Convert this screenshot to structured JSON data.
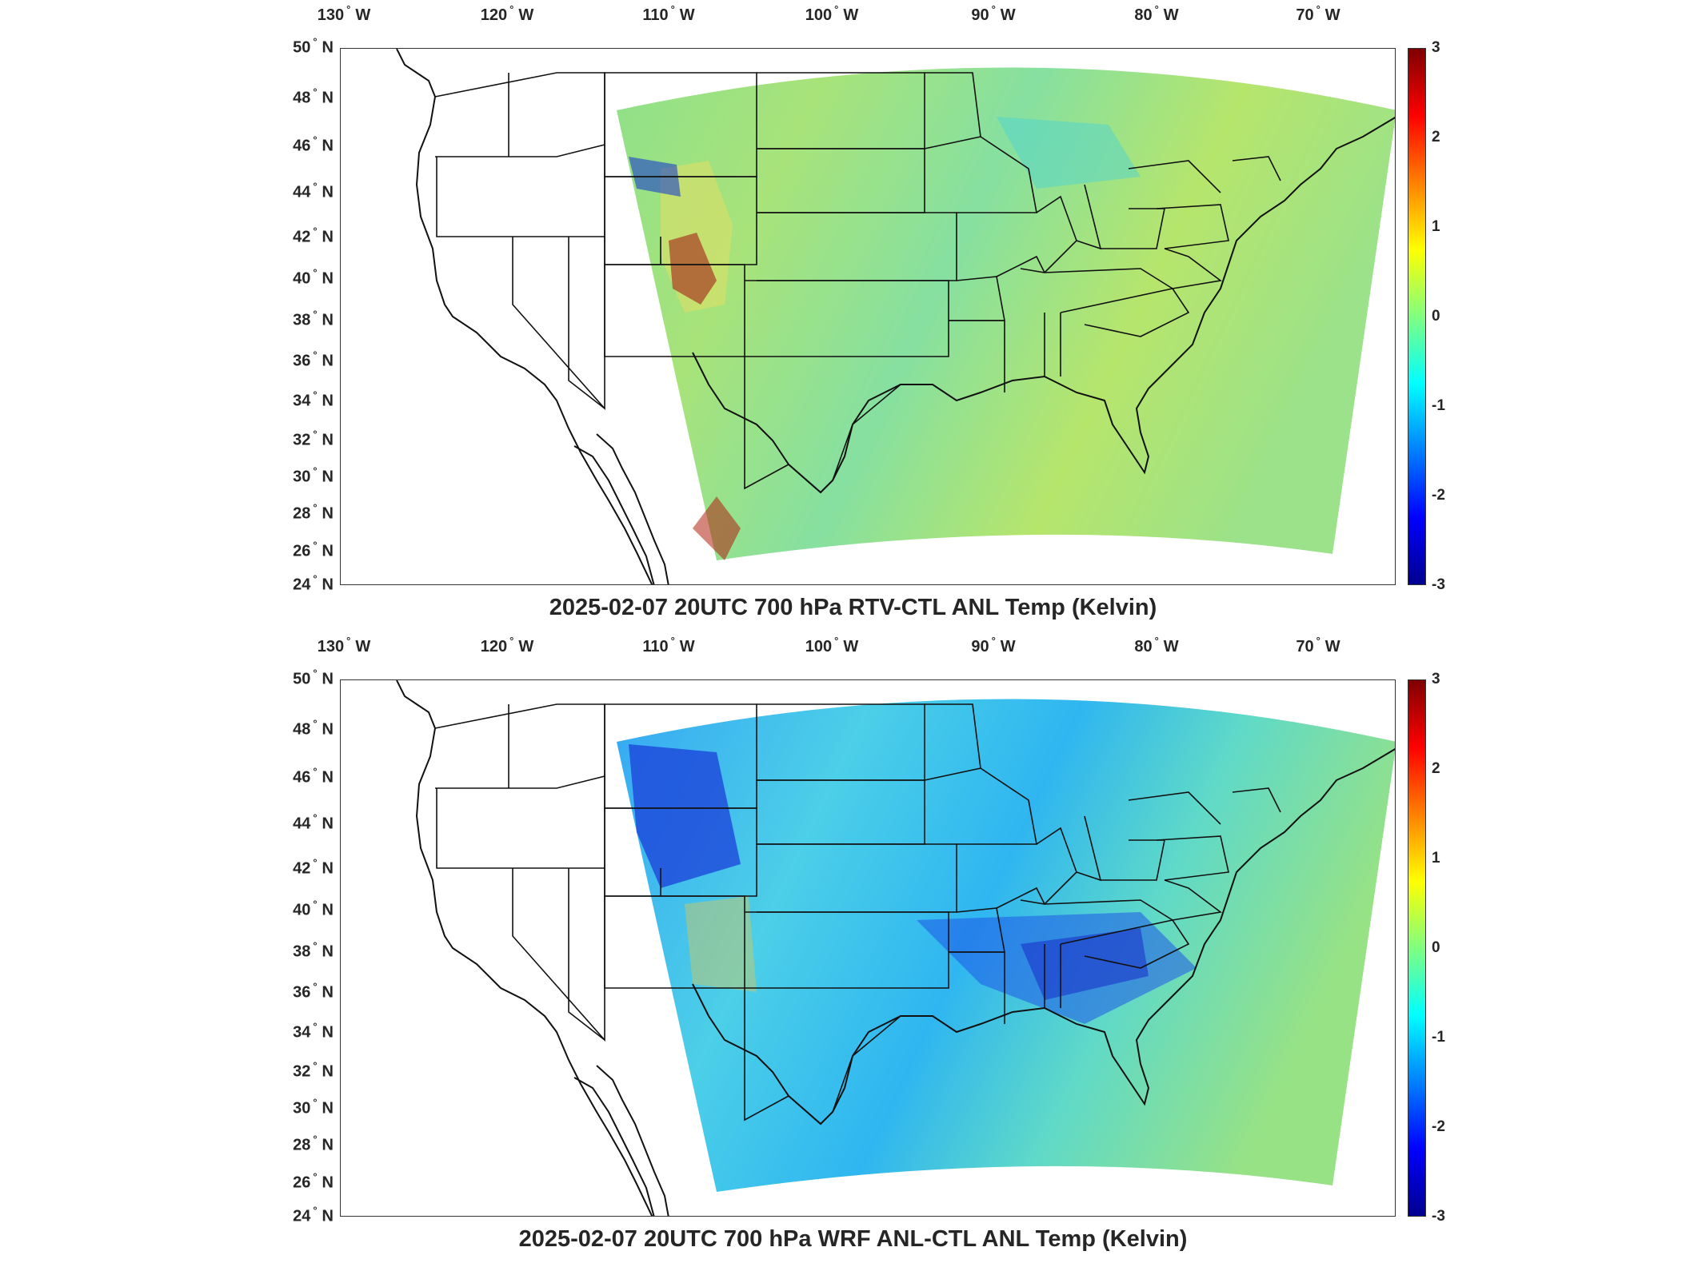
{
  "panels": [
    {
      "title": "2025-02-07 20UTC 700 hPa RTV-CTL ANL Temp (Kelvin)",
      "field": "rtv",
      "lon_ticks": [
        "130",
        "120",
        "110",
        "100",
        "90",
        "80",
        "70"
      ],
      "lon_unit": "W",
      "lat_ticks": [
        "50",
        "48",
        "46",
        "44",
        "42",
        "40",
        "38",
        "36",
        "34",
        "32",
        "30",
        "28",
        "26",
        "24"
      ],
      "lat_unit": "N",
      "colorbar_ticks": [
        "3",
        "2",
        "1",
        "0",
        "-1",
        "-2",
        "-3"
      ],
      "colorbar_range": [
        -3,
        3
      ]
    },
    {
      "title": "2025-02-07 20UTC 700 hPa WRF ANL-CTL ANL Temp (Kelvin)",
      "field": "wrf",
      "lon_ticks": [
        "130",
        "120",
        "110",
        "100",
        "90",
        "80",
        "70"
      ],
      "lon_unit": "W",
      "lat_ticks": [
        "50",
        "48",
        "46",
        "44",
        "42",
        "40",
        "38",
        "36",
        "34",
        "32",
        "30",
        "28",
        "26",
        "24"
      ],
      "lat_unit": "N",
      "colorbar_ticks": [
        "3",
        "2",
        "1",
        "0",
        "-1",
        "-2",
        "-3"
      ],
      "colorbar_range": [
        -3,
        3
      ]
    }
  ],
  "colors": {
    "colormap": [
      "#00008f",
      "#0000ff",
      "#0080ff",
      "#00ffff",
      "#80ff80",
      "#ffff00",
      "#ff8000",
      "#ff0000",
      "#800000"
    ],
    "positive_anomaly": "#f1e64a",
    "neutral": "#7be39a",
    "negative_anomaly": "#2fb6f0",
    "strong_negative": "#1b3fd9"
  }
}
